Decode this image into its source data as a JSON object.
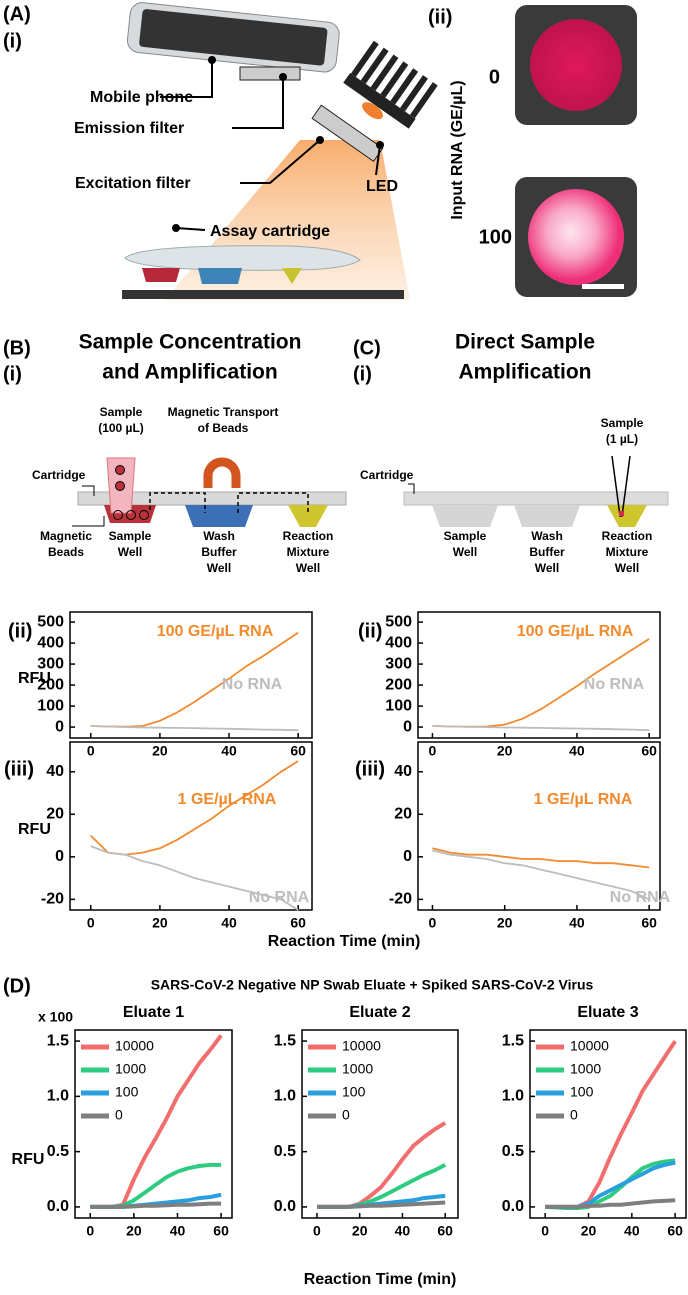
{
  "figure": {
    "panel_a": {
      "label": "(A)",
      "sub_i": "(i)",
      "mobile_phone": "Mobile phone",
      "emission_filter": "Emission filter",
      "excitation_filter": "Excitation filter",
      "led": "LED",
      "assay_cartridge": "Assay cartridge",
      "sub_ii": "(ii)",
      "input_rna_label": "Input RNA (GE/µL)",
      "row_labels": [
        "0",
        "100"
      ]
    },
    "panel_b": {
      "label": "(B)",
      "sub_i": "(i)",
      "title_lines": [
        "Sample Concentration",
        "and Amplification"
      ],
      "sample": [
        "Sample",
        "(100 µL)"
      ],
      "transport": [
        "Magnetic Transport",
        "of Beads"
      ],
      "cartridge": "Cartridge",
      "beads": [
        "Magnetic",
        "Beads"
      ],
      "wells": [
        [
          "Sample",
          "Well"
        ],
        [
          "Wash",
          "Buffer",
          "Well"
        ],
        [
          "Reaction",
          "Mixture",
          "Well"
        ]
      ]
    },
    "panel_c": {
      "label": "(C)",
      "sub_i": "(i)",
      "title_lines": [
        "Direct Sample",
        "Amplification"
      ],
      "sample": [
        "Sample",
        "(1 µL)"
      ],
      "cartridge": "Cartridge",
      "wells": [
        [
          "Sample",
          "Well"
        ],
        [
          "Wash",
          "Buffer",
          "Well"
        ],
        [
          "Reaction",
          "Mixture",
          "Well"
        ]
      ]
    },
    "bc_x_label": "Reaction Time (min)",
    "panel_d": {
      "label": "(D)",
      "title": "SARS-CoV-2 Negative NP Swab Eluate + Spiked SARS-CoV-2 Virus",
      "x_label": "Reaction Time (min)"
    }
  },
  "chart_data": [
    {
      "type": "line",
      "panel_label": "(ii)",
      "y_label": "RFU",
      "x": [
        0,
        5,
        10,
        15,
        20,
        25,
        30,
        35,
        40,
        45,
        50,
        55,
        60
      ],
      "xlim": [
        -6,
        64
      ],
      "xticks": [
        0,
        20,
        40,
        60
      ],
      "ylim": [
        -52,
        548
      ],
      "yticks": [
        0,
        100,
        200,
        300,
        400,
        500
      ],
      "series": [
        {
          "name": "100 GE/µL RNA",
          "color": "#f28a2e",
          "values": [
            5,
            3,
            2,
            5,
            30,
            70,
            120,
            175,
            230,
            290,
            340,
            395,
            450
          ]
        },
        {
          "name": "No RNA",
          "color": "#bdbdbd",
          "values": [
            5,
            3,
            0,
            -2,
            -3,
            -4,
            -5,
            -7,
            -8,
            -10,
            -12,
            -13,
            -15
          ]
        }
      ]
    },
    {
      "type": "line",
      "panel_label": "(iii)",
      "y_label": "RFU",
      "x": [
        0,
        5,
        10,
        15,
        20,
        25,
        30,
        35,
        40,
        45,
        50,
        55,
        60
      ],
      "xlim": [
        -6,
        64
      ],
      "xticks": [
        0,
        20,
        40,
        60
      ],
      "ylim": [
        -25,
        54
      ],
      "yticks": [
        -20,
        0,
        20,
        40
      ],
      "series": [
        {
          "name": "1 GE/µL RNA",
          "color": "#f28a2e",
          "values": [
            10,
            2,
            1,
            2,
            4,
            8,
            13,
            18,
            24,
            29,
            34,
            40,
            45
          ]
        },
        {
          "name": "No RNA",
          "color": "#bdbdbd",
          "values": [
            5,
            2,
            1,
            -2,
            -4,
            -7,
            -10,
            -12,
            -14,
            -16,
            -18,
            -20,
            -25
          ]
        }
      ]
    },
    {
      "type": "line",
      "panel_label": "(ii)",
      "x": [
        0,
        5,
        10,
        15,
        20,
        25,
        30,
        35,
        40,
        45,
        50,
        55,
        60
      ],
      "xlim": [
        -4,
        63
      ],
      "xticks": [
        0,
        20,
        40,
        60
      ],
      "ylim": [
        -52,
        548
      ],
      "yticks": [
        0,
        100,
        200,
        300,
        400,
        500
      ],
      "series": [
        {
          "name": "100 GE/µL RNA",
          "color": "#f28a2e",
          "values": [
            5,
            3,
            2,
            3,
            12,
            40,
            85,
            140,
            195,
            255,
            310,
            365,
            420
          ]
        },
        {
          "name": "No RNA",
          "color": "#bdbdbd",
          "values": [
            5,
            3,
            1,
            0,
            -2,
            -3,
            -4,
            -6,
            -7,
            -8,
            -10,
            -12,
            -15
          ]
        }
      ]
    },
    {
      "type": "line",
      "panel_label": "(iii)",
      "x": [
        0,
        5,
        10,
        15,
        20,
        25,
        30,
        35,
        40,
        45,
        50,
        55,
        60
      ],
      "xlim": [
        -4,
        63
      ],
      "xticks": [
        0,
        20,
        40,
        60
      ],
      "ylim": [
        -25,
        54
      ],
      "yticks": [
        -20,
        0,
        20,
        40
      ],
      "series": [
        {
          "name": "1 GE/µL RNA",
          "color": "#f28a2e",
          "values": [
            4,
            2,
            1,
            1,
            0,
            -1,
            -1,
            -2,
            -2,
            -3,
            -3,
            -4,
            -5
          ]
        },
        {
          "name": "No RNA",
          "color": "#bdbdbd",
          "values": [
            3,
            1,
            0,
            -1,
            -3,
            -4,
            -6,
            -8,
            -10,
            -12,
            -14,
            -16,
            -20
          ]
        }
      ]
    },
    {
      "type": "line",
      "title": "Eluate 1",
      "y_label": "RFU",
      "y_multiplier": "x 100",
      "legend": "upper left",
      "x": [
        0,
        10,
        15,
        20,
        25,
        30,
        35,
        40,
        45,
        50,
        55,
        60
      ],
      "xlim": [
        -7,
        65
      ],
      "xticks": [
        0,
        20,
        40,
        60
      ],
      "ylim": [
        -0.1,
        1.6
      ],
      "yticks": [
        {
          "value": 0,
          "label": "0.0"
        },
        0.5,
        {
          "value": 1,
          "label": "1.0"
        },
        1.5
      ],
      "series": [
        {
          "name": "10000",
          "color": "#f26d6d",
          "values": [
            0,
            0,
            0.02,
            0.25,
            0.45,
            0.62,
            0.8,
            1.0,
            1.15,
            1.3,
            1.42,
            1.55
          ]
        },
        {
          "name": "1000",
          "color": "#2ecc80",
          "values": [
            0,
            0,
            0.01,
            0.06,
            0.13,
            0.2,
            0.27,
            0.32,
            0.35,
            0.37,
            0.38,
            0.38
          ]
        },
        {
          "name": "100",
          "color": "#2a9fe0",
          "values": [
            0,
            0,
            0,
            0.01,
            0.02,
            0.03,
            0.04,
            0.05,
            0.06,
            0.08,
            0.09,
            0.11
          ]
        },
        {
          "name": "0",
          "color": "#7f7f7f",
          "values": [
            0,
            0,
            0,
            0.005,
            0.01,
            0.01,
            0.015,
            0.02,
            0.02,
            0.025,
            0.03,
            0.03
          ]
        }
      ]
    },
    {
      "type": "line",
      "title": "Eluate 2",
      "legend": "upper left",
      "x": [
        0,
        10,
        15,
        20,
        25,
        30,
        35,
        40,
        45,
        50,
        55,
        60
      ],
      "xlim": [
        -7,
        66
      ],
      "xticks": [
        0,
        20,
        40,
        60
      ],
      "ylim": [
        -0.1,
        1.6
      ],
      "yticks": [
        {
          "value": 0,
          "label": "0.0"
        },
        0.5,
        {
          "value": 1,
          "label": "1.0"
        },
        1.5
      ],
      "series": [
        {
          "name": "10000",
          "color": "#f26d6d",
          "values": [
            0,
            0,
            0,
            0.03,
            0.1,
            0.18,
            0.3,
            0.43,
            0.55,
            0.63,
            0.7,
            0.76
          ]
        },
        {
          "name": "1000",
          "color": "#2ecc80",
          "values": [
            0,
            0,
            0,
            0.02,
            0.05,
            0.09,
            0.14,
            0.19,
            0.24,
            0.29,
            0.33,
            0.38
          ]
        },
        {
          "name": "100",
          "color": "#2a9fe0",
          "values": [
            0,
            0,
            0,
            0.01,
            0.02,
            0.03,
            0.04,
            0.05,
            0.06,
            0.08,
            0.09,
            0.1
          ]
        },
        {
          "name": "0",
          "color": "#7f7f7f",
          "values": [
            0,
            0,
            0,
            0.005,
            0.01,
            0.01,
            0.015,
            0.02,
            0.025,
            0.03,
            0.035,
            0.04
          ]
        }
      ]
    },
    {
      "type": "line",
      "title": "Eluate 3",
      "legend": "upper left",
      "x": [
        0,
        10,
        15,
        20,
        25,
        30,
        35,
        40,
        45,
        50,
        55,
        60
      ],
      "xlim": [
        -7,
        65
      ],
      "xticks": [
        0,
        20,
        40,
        60
      ],
      "ylim": [
        -0.1,
        1.6
      ],
      "yticks": [
        {
          "value": 0,
          "label": "0.0"
        },
        0.5,
        {
          "value": 1,
          "label": "1.0"
        },
        1.5
      ],
      "series": [
        {
          "name": "10000",
          "color": "#f26d6d",
          "values": [
            0,
            0,
            0,
            0.05,
            0.22,
            0.45,
            0.66,
            0.85,
            1.05,
            1.2,
            1.35,
            1.5
          ]
        },
        {
          "name": "1000",
          "color": "#2ecc80",
          "values": [
            0,
            -0.01,
            -0.01,
            0,
            0.05,
            0.1,
            0.18,
            0.27,
            0.35,
            0.39,
            0.41,
            0.42
          ]
        },
        {
          "name": "100",
          "color": "#2a9fe0",
          "values": [
            0,
            0,
            0,
            0.03,
            0.1,
            0.15,
            0.2,
            0.25,
            0.3,
            0.35,
            0.38,
            0.4
          ]
        },
        {
          "name": "0",
          "color": "#7f7f7f",
          "values": [
            0,
            0,
            0,
            0.01,
            0.01,
            0.02,
            0.02,
            0.03,
            0.04,
            0.05,
            0.055,
            0.06
          ]
        }
      ]
    }
  ]
}
